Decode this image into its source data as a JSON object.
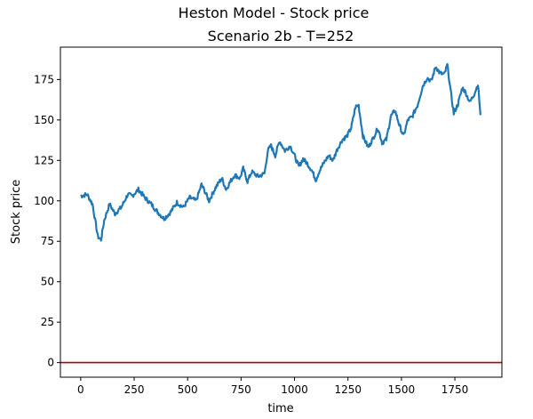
{
  "chart_data": {
    "type": "line",
    "title": "Heston Model - Stock price",
    "subtitle": "Scenario 2b - T=252",
    "xlabel": "time",
    "ylabel": "Stock price",
    "xlim": [
      -95,
      1970
    ],
    "ylim": [
      -9,
      195
    ],
    "xticks": [
      0,
      250,
      500,
      750,
      1000,
      1250,
      1500,
      1750
    ],
    "yticks": [
      0,
      25,
      50,
      75,
      100,
      125,
      150,
      175
    ],
    "grid": false,
    "series": [
      {
        "color": "#1f77b4",
        "x": [
          0,
          30,
          55,
          80,
          95,
          110,
          135,
          160,
          190,
          220,
          240,
          270,
          300,
          330,
          360,
          390,
          420,
          450,
          480,
          510,
          540,
          565,
          580,
          600,
          630,
          660,
          680,
          700,
          720,
          745,
          760,
          780,
          800,
          830,
          860,
          875,
          890,
          910,
          930,
          955,
          980,
          1000,
          1020,
          1040,
          1060,
          1080,
          1100,
          1115,
          1135,
          1160,
          1180,
          1200,
          1225,
          1245,
          1265,
          1285,
          1300,
          1320,
          1345,
          1365,
          1390,
          1410,
          1430,
          1450,
          1470,
          1490,
          1510,
          1530,
          1550,
          1575,
          1600,
          1620,
          1640,
          1660,
          1680,
          1700,
          1715,
          1730,
          1745,
          1765,
          1785,
          1800,
          1820,
          1840,
          1858,
          1870
        ],
        "values": [
          103,
          104,
          98,
          78,
          76,
          88,
          98,
          92,
          96,
          104,
          103,
          107,
          102,
          98,
          93,
          89,
          93,
          99,
          96,
          102,
          100,
          110,
          106,
          100,
          108,
          114,
          107,
          112,
          116,
          114,
          120,
          112,
          118,
          115,
          117,
          131,
          134,
          128,
          137,
          131,
          134,
          128,
          121,
          126,
          123,
          119,
          113,
          118,
          123,
          128,
          125,
          132,
          138,
          140,
          145,
          158,
          159,
          140,
          133,
          138,
          145,
          136,
          138,
          152,
          156,
          147,
          140,
          150,
          152,
          159,
          171,
          176,
          174,
          183,
          179,
          178,
          184,
          168,
          154,
          160,
          170,
          167,
          161,
          166,
          172,
          153
        ],
        "noise": 1.4
      },
      {
        "color": "#b80000",
        "x": [
          -95,
          1970
        ],
        "values": [
          0,
          0
        ]
      }
    ]
  }
}
